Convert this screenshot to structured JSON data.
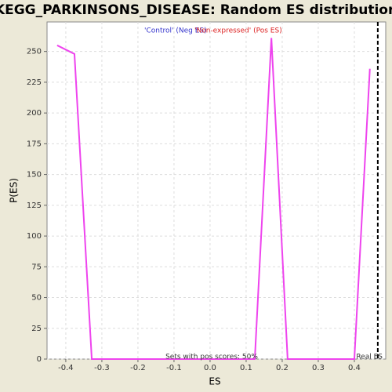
{
  "chart_data": {
    "type": "line",
    "title": "KEGG_PARKINSONS_DISEASE: Random ES distribution",
    "xlabel": "ES",
    "ylabel": "P(ES)",
    "legend": [
      {
        "name": "'Control' (Neg ES)",
        "color": "#3333cc"
      },
      {
        "name": "'Non-expressed' (Pos ES)",
        "color": "#dd2222"
      }
    ],
    "annotation": "Sets with pos scores: 50%",
    "real_es_label": "Real ES",
    "real_es": 0.465,
    "series": [
      {
        "color": "#ee44ee",
        "x": [
          -0.424,
          -0.376,
          -0.328,
          0.124,
          0.17,
          0.215,
          0.4,
          0.443
        ],
        "values": [
          255,
          248,
          0,
          0,
          261,
          0,
          0,
          236
        ]
      }
    ],
    "xlim": [
      -0.452,
      0.487
    ],
    "ylim": [
      0,
      274
    ],
    "xticks": [
      -0.4,
      -0.3,
      -0.2,
      -0.1,
      {
        "value": 0,
        "label": "0.0"
      },
      0.1,
      0.2,
      0.3,
      0.4
    ],
    "yticks": [
      0,
      25,
      50,
      75,
      100,
      125,
      150,
      175,
      200,
      225,
      250
    ],
    "grid": true
  }
}
